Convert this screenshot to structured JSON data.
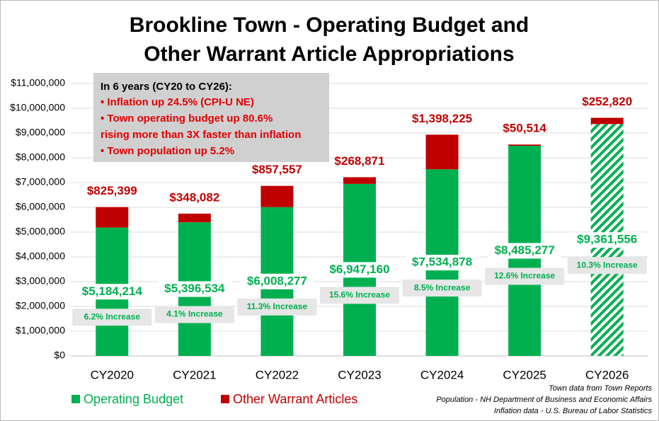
{
  "chart_data": {
    "type": "stacked_bar",
    "title": [
      "Brookline Town - Operating Budget and",
      "Other Warrant Article Appropriations"
    ],
    "categories": [
      "CY2020",
      "CY2021",
      "CY2022",
      "CY2023",
      "CY2024",
      "CY2025",
      "CY2026"
    ],
    "series": [
      {
        "name": "Operating Budget",
        "color": "#00b050",
        "values": [
          5184214,
          5396534,
          6008277,
          6947160,
          7534878,
          8485277,
          9361556
        ],
        "value_labels": [
          "$5,184,214",
          "$5,396,534",
          "$6,008,277",
          "$6,947,160",
          "$7,534,878",
          "$8,485,277",
          "$9,361,556"
        ],
        "hatched": [
          false,
          false,
          false,
          false,
          false,
          false,
          true
        ]
      },
      {
        "name": "Other Warrant Articles",
        "color": "#c00000",
        "values": [
          825399,
          348082,
          857557,
          268871,
          1398225,
          50514,
          252820
        ],
        "value_labels": [
          "$825,399",
          "$348,082",
          "$857,557",
          "$268,871",
          "$1,398,225",
          "$50,514",
          "$252,820"
        ]
      }
    ],
    "increase_labels": [
      "6.2% Increase",
      "4.1% Increase",
      "11.3% Increase",
      "15.6% Increase",
      "8.5% Increase",
      "12.6% Increase",
      "10.3% Increase"
    ],
    "ylim": [
      0,
      11000000
    ],
    "yticks": [
      {
        "value": 0,
        "label": "$0"
      },
      {
        "value": 1000000,
        "label": "$1,000,000"
      },
      {
        "value": 2000000,
        "label": "$2,000,000"
      },
      {
        "value": 3000000,
        "label": "$3,000,000"
      },
      {
        "value": 4000000,
        "label": "$4,000,000"
      },
      {
        "value": 5000000,
        "label": "$5,000,000"
      },
      {
        "value": 6000000,
        "label": "$6,000,000"
      },
      {
        "value": 7000000,
        "label": "$7,000,000"
      },
      {
        "value": 8000000,
        "label": "$8,000,000"
      },
      {
        "value": 9000000,
        "label": "$9,000,000"
      },
      {
        "value": 10000000,
        "label": "$10,000,000"
      },
      {
        "value": 11000000,
        "label": "$11,000,000"
      }
    ],
    "grid": true,
    "annotation": {
      "heading": "In 6 years (CY20 to CY26):",
      "lines": [
        "• Inflation up 24.5% (CPI-U NE)",
        "• Town operating budget up 80.6%",
        "rising more than 3X faster than inflation",
        "• Town population up 5.2%"
      ]
    },
    "sources": [
      "Town data from Town Reports",
      "Population - NH Department  of Business and Economic Affairs",
      "Inflation data - U.S. Bureau of Labor Statistics"
    ]
  }
}
